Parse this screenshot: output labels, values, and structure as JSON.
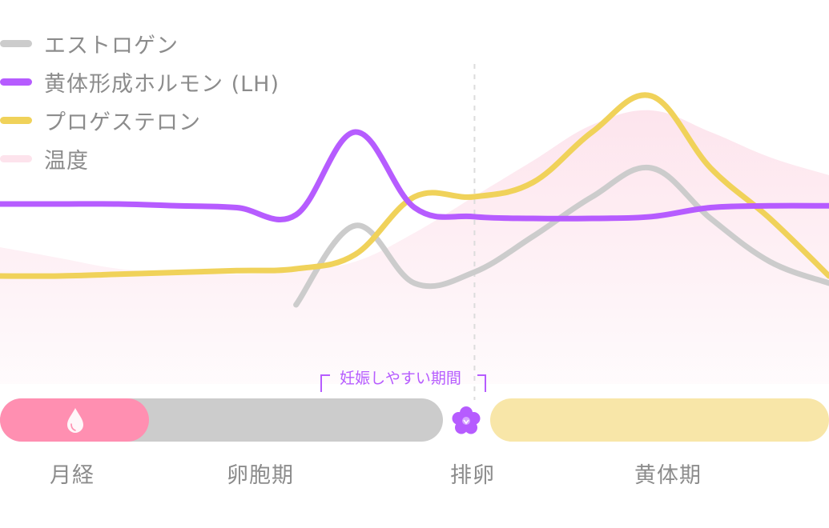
{
  "chart_data": {
    "type": "line",
    "x": [
      0,
      2,
      4,
      6,
      8,
      10,
      12,
      14,
      16,
      18,
      20,
      22,
      24,
      26,
      28
    ],
    "series": [
      {
        "name": "エストロゲン",
        "color": "#cccccc",
        "values": [
          null,
          null,
          null,
          null,
          null,
          2.2,
          4.4,
          2.8,
          3.1,
          4.1,
          5.2,
          6.0,
          4.6,
          3.4,
          2.8
        ]
      },
      {
        "name": "黄体形成ホルモン (LH)",
        "color": "#b65cff",
        "values": [
          5.0,
          5.0,
          5.0,
          4.95,
          4.9,
          4.7,
          7.0,
          4.9,
          4.65,
          4.6,
          4.6,
          4.65,
          4.9,
          4.95,
          4.95
        ]
      },
      {
        "name": "プロゲステロン",
        "color": "#f0d25a",
        "values": [
          3.0,
          3.0,
          3.05,
          3.1,
          3.15,
          3.2,
          3.6,
          5.2,
          5.2,
          5.6,
          7.0,
          8.0,
          6.0,
          4.6,
          3.0
        ]
      },
      {
        "name": "温度",
        "color": "#fde3ec",
        "type": "area",
        "values": [
          3.8,
          3.5,
          3.2,
          3.1,
          3.05,
          3.15,
          3.4,
          4.2,
          5.2,
          6.2,
          7.2,
          7.6,
          7.0,
          6.3,
          5.8
        ]
      }
    ],
    "phases": [
      {
        "label": "月経",
        "color": "#ff8fb1"
      },
      {
        "label": "卵胞期",
        "color": "#cccccc"
      },
      {
        "label": "排卵",
        "color": "#b65cff"
      },
      {
        "label": "黄体期",
        "color": "#f8e6a8"
      }
    ],
    "annotation": "妊娠しやすい期間",
    "ovulation_line": 16,
    "ylim": [
      0,
      10
    ],
    "grid": false,
    "legend_position": "top-left"
  }
}
